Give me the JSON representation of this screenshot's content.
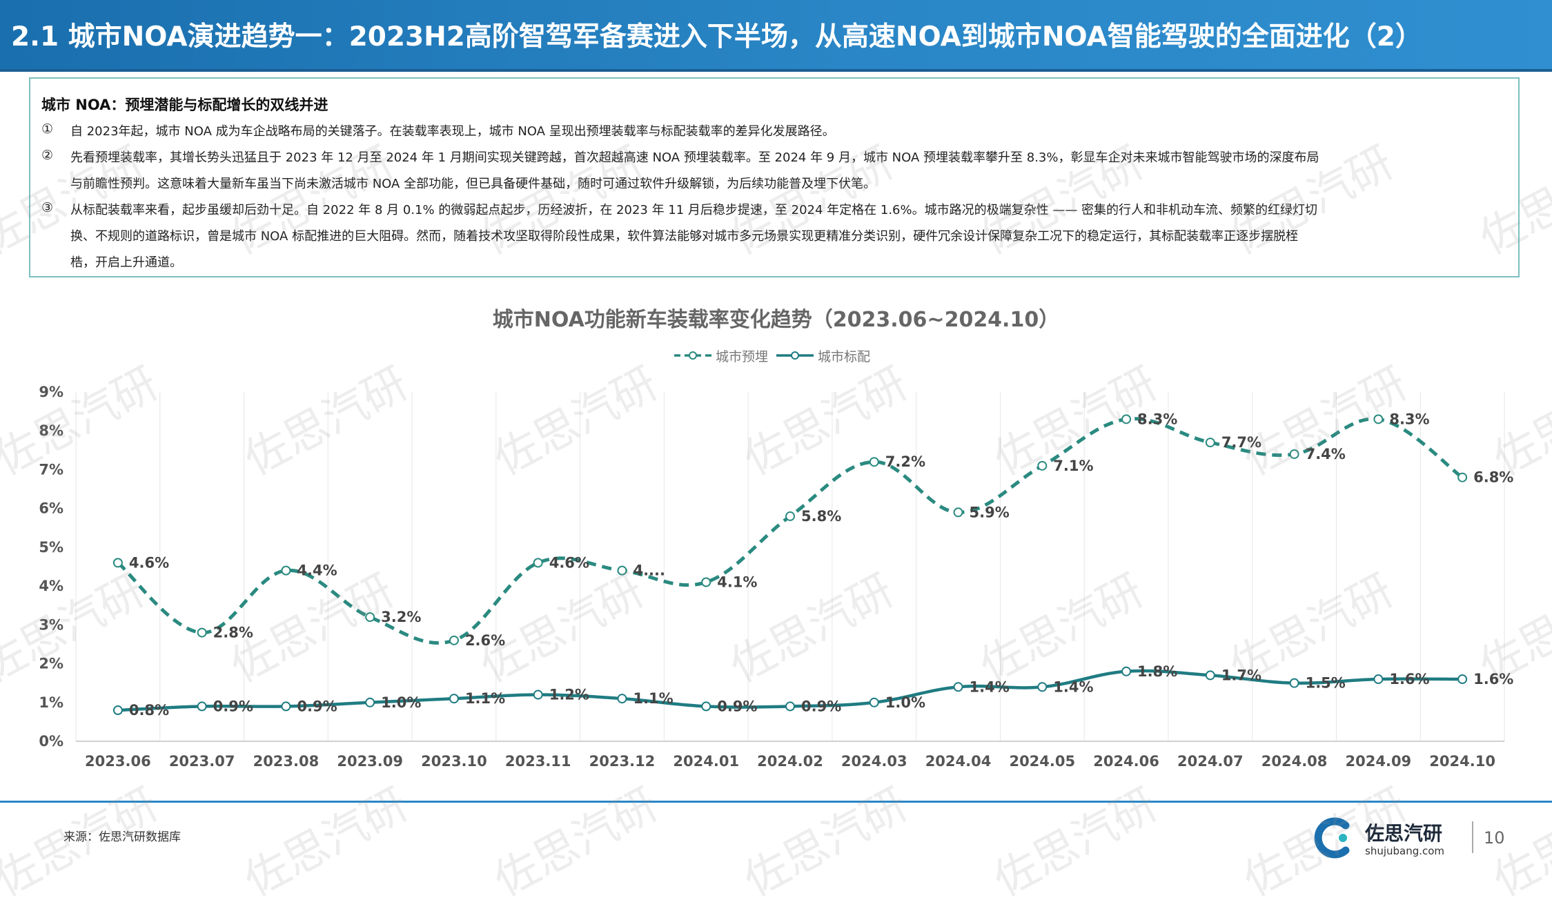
{
  "header": {
    "title": "2.1 城市NOA演进趋势一：2023H2高阶智驾军备赛进入下半场，从高速NOA到城市NOA智能驾驶的全面进化（2）"
  },
  "summary": {
    "heading": "城市 NOA：预埋潜能与标配增长的双线并进",
    "paragraphs": [
      {
        "num": "①",
        "lines": [
          "自 2023年起，城市 NOA 成为车企战略布局的关键落子。在装载率表现上，城市 NOA 呈现出预埋装载率与标配装载率的差异化发展路径。"
        ]
      },
      {
        "num": "②",
        "lines": [
          "先看预埋装载率，其增长势头迅猛且于 2023 年 12 月至 2024 年 1 月期间实现关键跨越，首次超越高速 NOA 预埋装载率。至 2024 年 9 月，城市 NOA 预埋装载率攀升至 8.3%，彰显车企对未来城市智能驾驶市场的深度布局",
          "与前瞻性预判。这意味着大量新车虽当下尚未激活城市 NOA 全部功能，但已具备硬件基础，随时可通过软件升级解锁，为后续功能普及埋下伏笔。"
        ]
      },
      {
        "num": "③",
        "lines": [
          "从标配装载率来看，起步虽缓却后劲十足。自 2022 年 8 月 0.1% 的微弱起点起步，历经波折，在 2023 年 11 月后稳步提速，至 2024 年定格在 1.6%。城市路况的极端复杂性 —— 密集的行人和非机动车流、频繁的红绿灯切",
          "换、不规则的道路标识，曾是城市 NOA 标配推进的巨大阻碍。然而，随着技术攻坚取得阶段性成果，软件算法能够对城市多元场景实现更精准分类识别，硬件冗余设计保障复杂工况下的稳定运行，其标配装载率正逐步摆脱桎",
          "梏，开启上升通道。"
        ]
      }
    ]
  },
  "chart_data": {
    "type": "line",
    "title": "城市NOA功能新车装载率变化趋势（2023.06~2024.10）",
    "categories": [
      "2023.06",
      "2023.07",
      "2023.08",
      "2023.09",
      "2023.10",
      "2023.11",
      "2023.12",
      "2024.01",
      "2024.02",
      "2024.03",
      "2024.04",
      "2024.05",
      "2024.06",
      "2024.07",
      "2024.08",
      "2024.09",
      "2024.10"
    ],
    "yticks": [
      "0%",
      "1%",
      "2%",
      "3%",
      "4%",
      "5%",
      "6%",
      "7%",
      "8%",
      "9%"
    ],
    "ylim": [
      0,
      9
    ],
    "grid": "vertical",
    "legend_position": "top-center",
    "series": [
      {
        "name": "城市预埋",
        "style": "dashed",
        "color": "#2a8a80",
        "values": [
          4.6,
          2.8,
          4.4,
          3.2,
          2.6,
          4.6,
          4.4,
          4.1,
          5.8,
          7.2,
          5.9,
          7.1,
          8.3,
          7.7,
          7.4,
          8.3,
          6.8
        ],
        "labels": [
          "4.6%",
          "2.8%",
          "4.4%",
          "3.2%",
          "2.6%",
          "4.6%",
          "4....",
          "4.1%",
          "5.8%",
          "7.2%",
          "5.9%",
          "7.1%",
          "8.3%",
          "7.7%",
          "7.4%",
          "8.3%",
          "6.8%"
        ]
      },
      {
        "name": "城市标配",
        "style": "solid",
        "color": "#1f7c82",
        "values": [
          0.8,
          0.9,
          0.9,
          1.0,
          1.1,
          1.2,
          1.1,
          0.9,
          0.9,
          1.0,
          1.4,
          1.4,
          1.8,
          1.7,
          1.5,
          1.6,
          1.6
        ],
        "labels": [
          "0.8%",
          "0.9%",
          "0.9%",
          "1.0%",
          "1.1%",
          "1.2%",
          "1.1%",
          "0.9%",
          "0.9%",
          "1.0%",
          "1.4%",
          "1.4%",
          "1.8%",
          "1.7%",
          "1.5%",
          "1.6%",
          "1.6%"
        ]
      }
    ]
  },
  "footer": {
    "source": "来源：佐思汽研数据库",
    "logo_name": "佐思汽研",
    "logo_url": "shujubang.com",
    "page_number": "10"
  },
  "watermark": {
    "text": "佐思汽研"
  },
  "colors": {
    "header_bg": "#2a86c6",
    "accent": "#1f7c82",
    "box_border": "#7cbfc0"
  }
}
